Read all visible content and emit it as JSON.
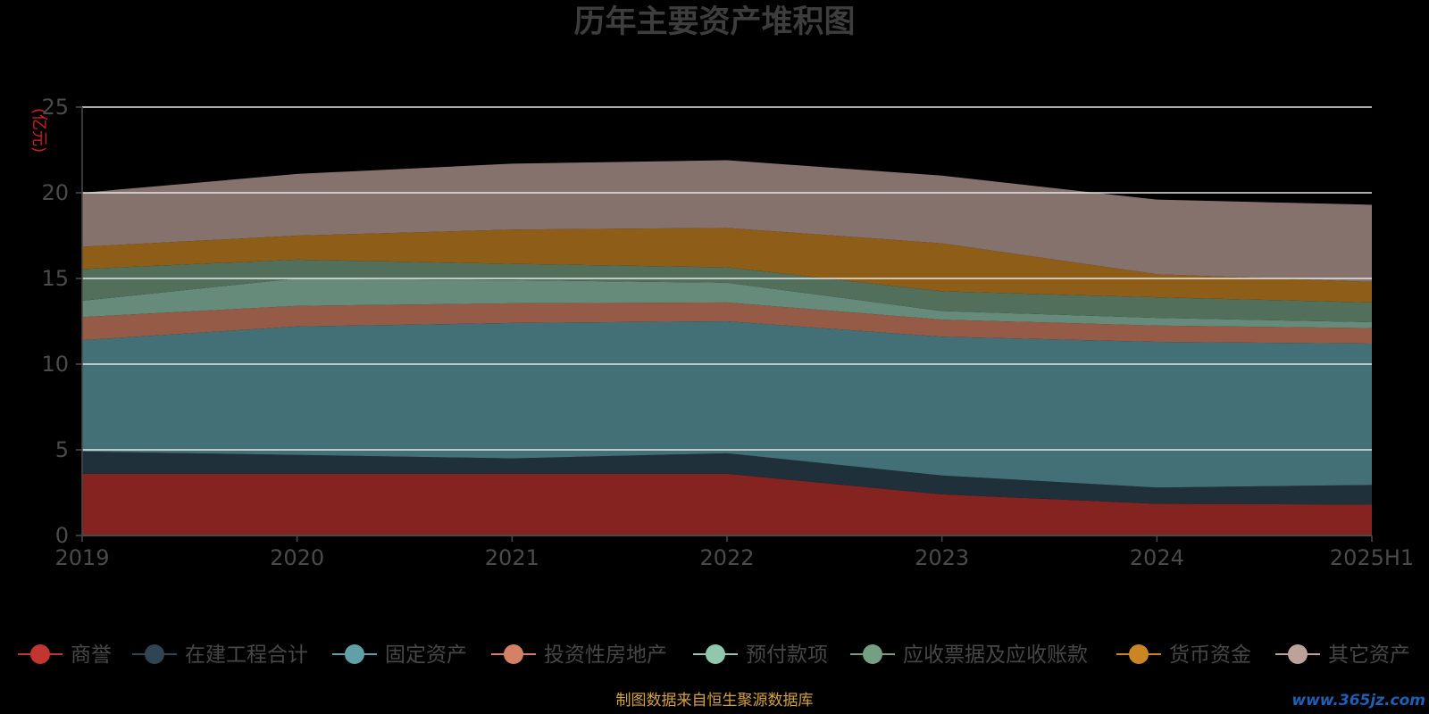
{
  "chart_data": {
    "type": "area",
    "stacked": true,
    "title": "历年主要资产堆积图",
    "ylabel": "(亿元)",
    "categories": [
      "2019",
      "2020",
      "2021",
      "2022",
      "2023",
      "2024",
      "2025H1"
    ],
    "ylim": [
      0,
      25
    ],
    "yticks": [
      0,
      5,
      10,
      15,
      20,
      25
    ],
    "grid": true,
    "legend_position": "bottom",
    "series": [
      {
        "name": "商誉",
        "values": [
          3.6,
          3.6,
          3.6,
          3.6,
          2.4,
          1.85,
          1.8
        ],
        "color": "#c23531",
        "fill": "#852321"
      },
      {
        "name": "在建工程合计",
        "values": [
          1.3,
          1.1,
          0.9,
          1.2,
          1.1,
          0.95,
          1.15
        ],
        "color": "#2f4554",
        "fill": "#20303a"
      },
      {
        "name": "固定资产",
        "values": [
          6.5,
          7.5,
          7.9,
          7.7,
          8.1,
          8.5,
          8.25
        ],
        "color": "#61a0a8",
        "fill": "#437076"
      },
      {
        "name": "投资性房地产",
        "values": [
          1.35,
          1.2,
          1.15,
          1.1,
          1.0,
          0.95,
          0.9
        ],
        "color": "#d48265",
        "fill": "#955b47"
      },
      {
        "name": "预付款项",
        "values": [
          0.95,
          1.6,
          1.35,
          1.15,
          0.5,
          0.45,
          0.35
        ],
        "color": "#91c7ae",
        "fill": "#668b7a"
      },
      {
        "name": "应收票据及应收账款",
        "values": [
          1.85,
          1.1,
          0.95,
          0.9,
          1.15,
          1.2,
          1.15
        ],
        "color": "#749f83",
        "fill": "#526f5c"
      },
      {
        "name": "货币资金",
        "values": [
          1.3,
          1.4,
          2.0,
          2.3,
          2.8,
          1.35,
          1.2
        ],
        "color": "#ca8622",
        "fill": "#8e5e18"
      },
      {
        "name": "其它资产",
        "values": [
          3.15,
          3.6,
          3.85,
          3.95,
          3.95,
          4.35,
          4.5
        ],
        "color": "#bda29a",
        "fill": "#85726c"
      }
    ]
  },
  "footer": {
    "source": "制图数据来自恒生聚源数据库",
    "watermark": "www.365jz.com"
  },
  "colors": {
    "background": "#000000",
    "grid": "#e6e6e6",
    "axis": "#4a4a4a",
    "title": "#3d3d3d",
    "unit": "#cc1f1f",
    "footer": "#d3a13a"
  }
}
